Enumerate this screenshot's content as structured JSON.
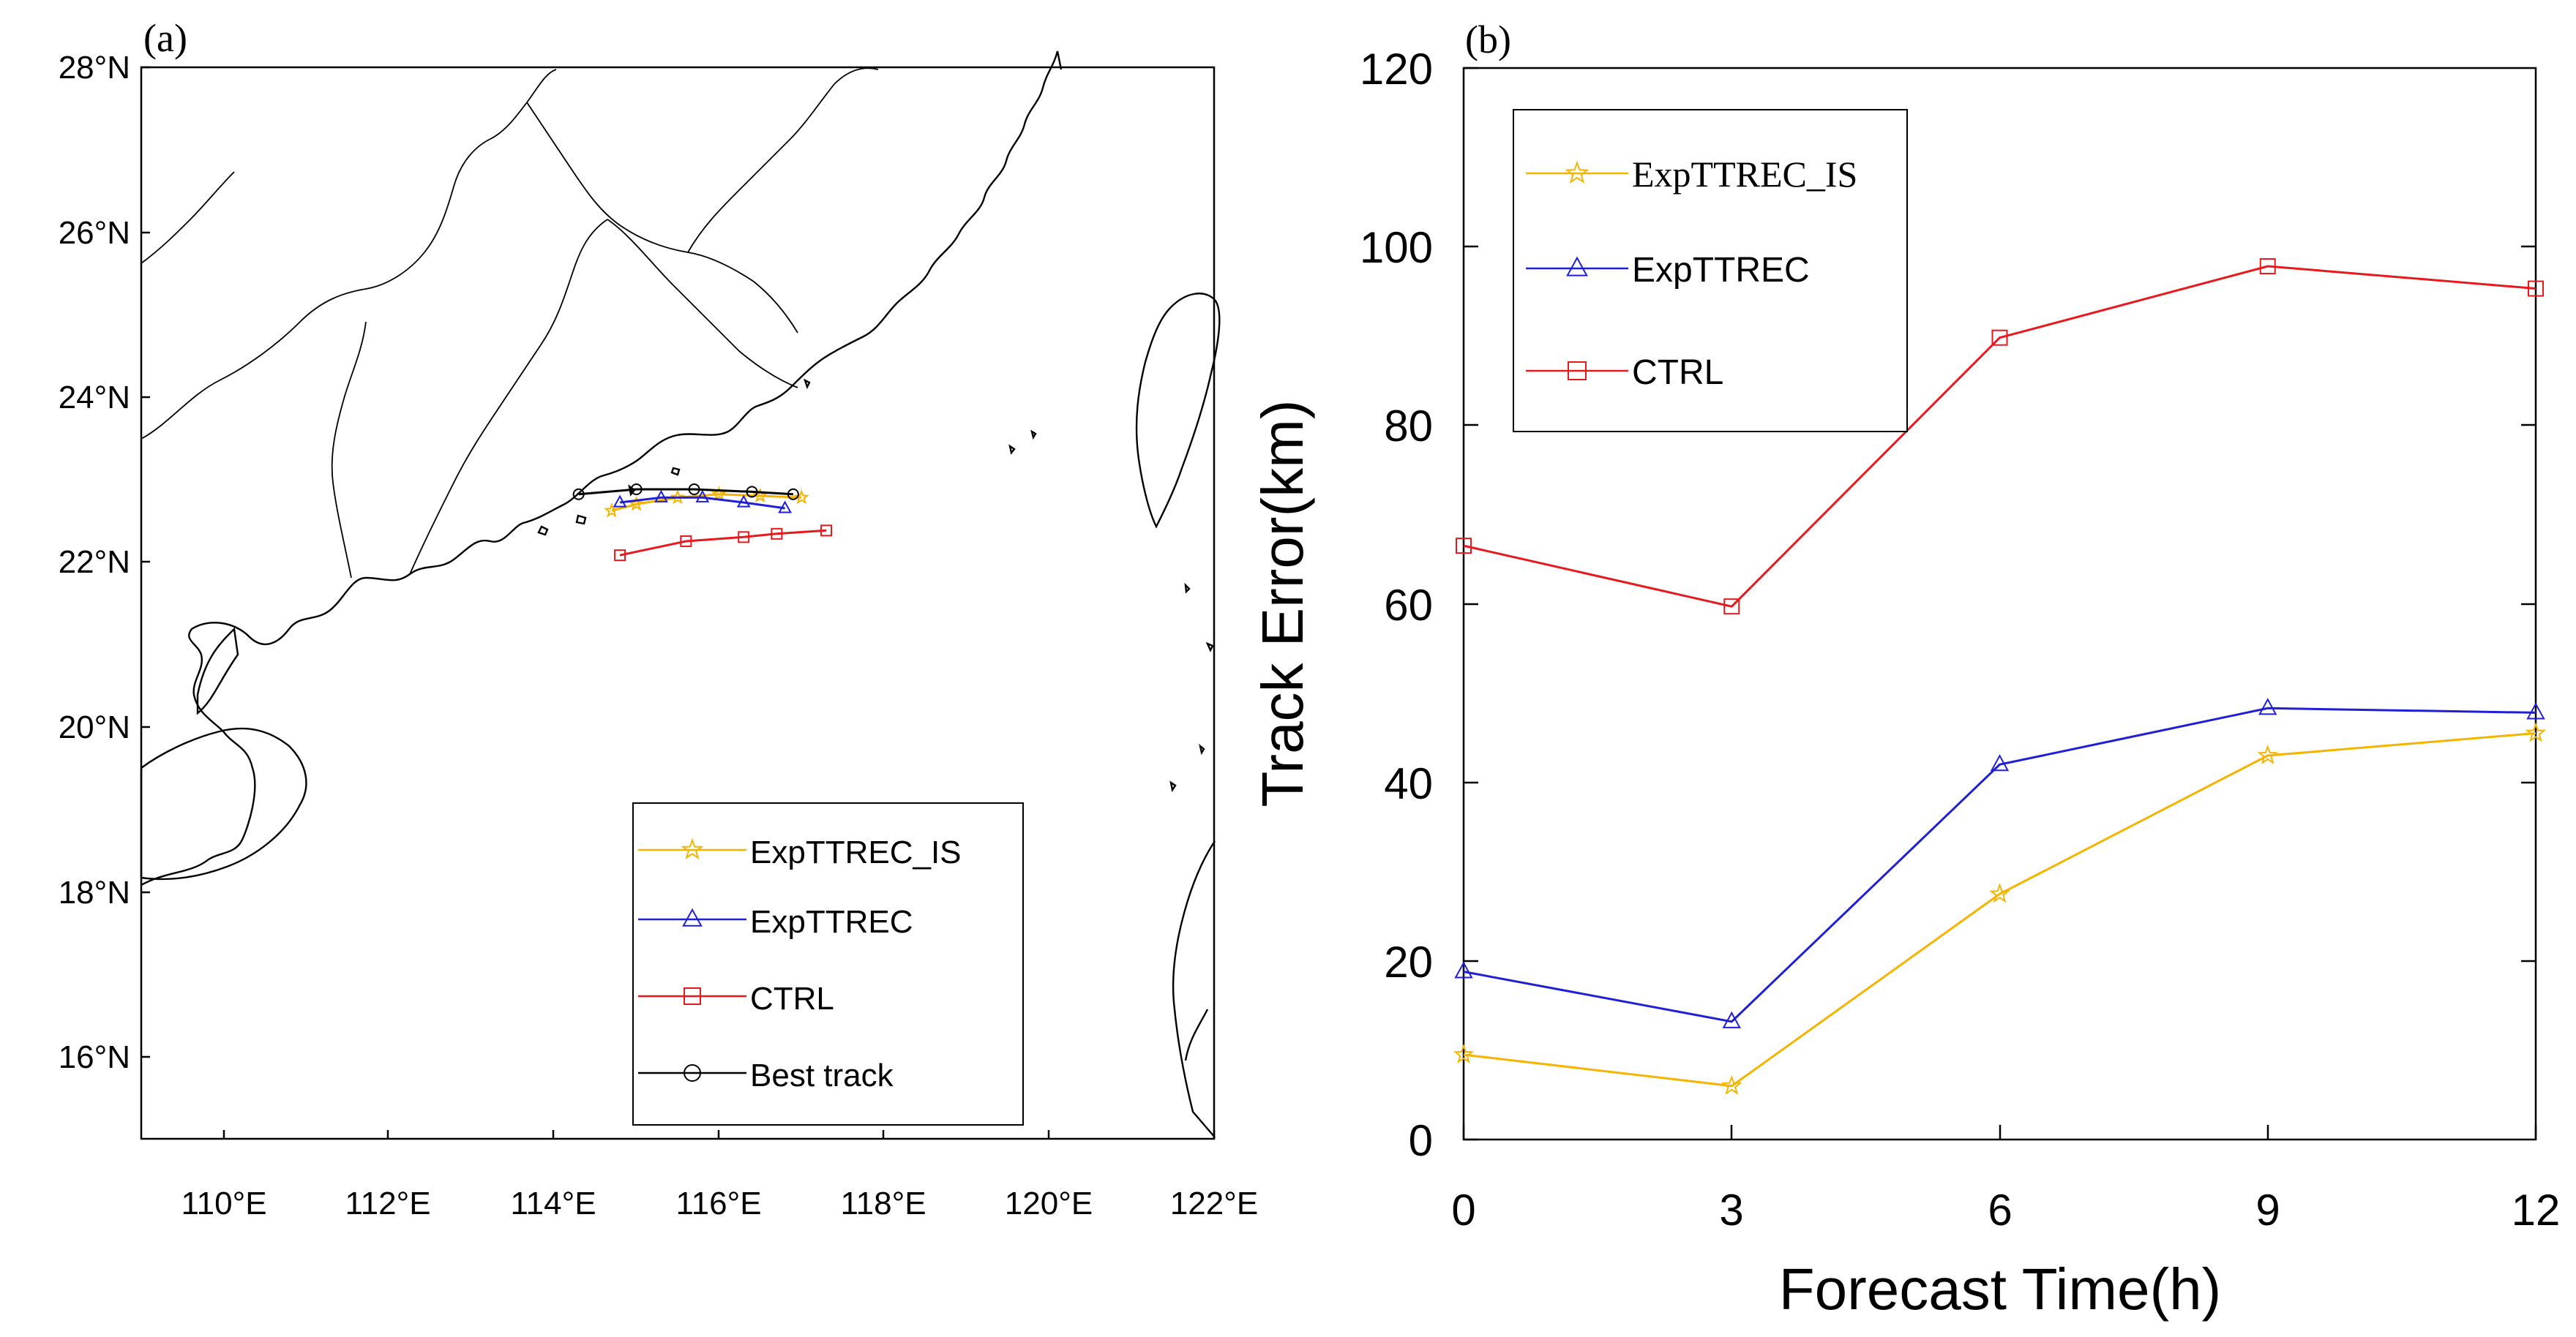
{
  "panel_a": {
    "label": "(a)",
    "legend": [
      {
        "name": "ExpTTREC_IS",
        "color": "#f5b400",
        "marker": "star"
      },
      {
        "name": "ExpTTREC",
        "color": "#1f1fd6",
        "marker": "triangle"
      },
      {
        "name": "CTRL",
        "color": "#e8191d",
        "marker": "square"
      },
      {
        "name": "Best track",
        "color": "#000000",
        "marker": "circle"
      }
    ]
  },
  "panel_b": {
    "label": "(b)",
    "legend": [
      {
        "name": "ExpTTREC_IS",
        "color": "#f5b400",
        "marker": "star"
      },
      {
        "name": "ExpTTREC",
        "color": "#1f1fd6",
        "marker": "triangle"
      },
      {
        "name": "CTRL",
        "color": "#e8191d",
        "marker": "square"
      }
    ]
  },
  "chart_data": [
    {
      "type": "line",
      "subtype": "map-track",
      "title": "(a)",
      "xlabel": "",
      "ylabel": "",
      "xlim": [
        109,
        122
      ],
      "ylim": [
        15,
        28
      ],
      "x_tick_values": [
        110,
        112,
        114,
        116,
        118,
        120,
        122
      ],
      "x_tick_labels": [
        "110°E",
        "112°E",
        "114°E",
        "116°E",
        "118°E",
        "120°E",
        "122°E"
      ],
      "y_tick_values": [
        16,
        18,
        20,
        22,
        24,
        26,
        28
      ],
      "y_tick_labels": [
        "16°N",
        "18°N",
        "20°N",
        "22°N",
        "24°N",
        "26°N",
        "28°N"
      ],
      "series": [
        {
          "name": "ExpTTREC_IS",
          "marker": "star",
          "color": "#f5b400",
          "lon": [
            114.7,
            115.0,
            115.5,
            116.0,
            116.5,
            117.0
          ],
          "lat": [
            22.62,
            22.7,
            22.78,
            22.82,
            22.8,
            22.78
          ]
        },
        {
          "name": "ExpTTREC",
          "marker": "triangle",
          "color": "#1f1fd6",
          "lon": [
            114.8,
            115.3,
            115.8,
            116.3,
            116.8
          ],
          "lat": [
            22.72,
            22.78,
            22.78,
            22.72,
            22.65
          ]
        },
        {
          "name": "CTRL",
          "marker": "square",
          "color": "#e8191d",
          "lon": [
            114.8,
            115.6,
            116.3,
            116.7,
            117.3
          ],
          "lat": [
            22.08,
            22.25,
            22.3,
            22.34,
            22.38
          ]
        },
        {
          "name": "Best track",
          "marker": "circle",
          "color": "#000000",
          "lon": [
            114.3,
            115.0,
            115.7,
            116.4,
            116.9
          ],
          "lat": [
            22.82,
            22.88,
            22.88,
            22.85,
            22.82
          ]
        }
      ]
    },
    {
      "type": "line",
      "title": "(b)",
      "xlabel": "Forecast Time(h)",
      "ylabel": "Track Error(km)",
      "xlim": [
        0,
        12
      ],
      "ylim": [
        0,
        120
      ],
      "x_ticks": [
        0,
        3,
        6,
        9,
        12
      ],
      "y_ticks": [
        0,
        20,
        40,
        60,
        80,
        100,
        120
      ],
      "x": [
        0,
        3,
        6,
        9,
        12
      ],
      "series": [
        {
          "name": "ExpTTREC_IS",
          "marker": "star",
          "color": "#f5b400",
          "values": [
            9.5,
            6.0,
            27.5,
            43.0,
            45.5
          ]
        },
        {
          "name": "ExpTTREC",
          "marker": "triangle",
          "color": "#1f1fd6",
          "values": [
            18.8,
            13.2,
            42.0,
            48.3,
            47.8
          ]
        },
        {
          "name": "CTRL",
          "marker": "square",
          "color": "#e8191d",
          "values": [
            66.5,
            59.7,
            89.8,
            97.8,
            95.3
          ]
        }
      ]
    }
  ]
}
